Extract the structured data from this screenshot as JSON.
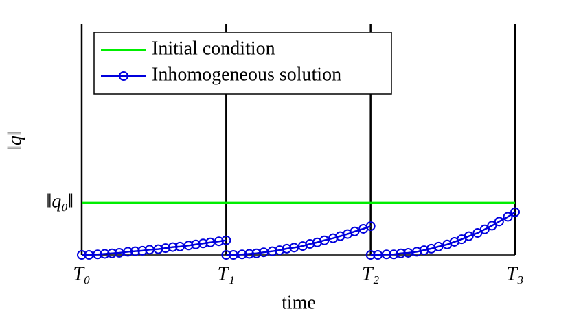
{
  "chart_data": {
    "type": "line",
    "xlabel": "time",
    "ylabel": "‖q‖",
    "xlim": [
      0,
      3
    ],
    "ylim": [
      0,
      4.43
    ],
    "xticks": [
      {
        "value": 0,
        "label": "T₀"
      },
      {
        "value": 1,
        "label": "T₁"
      },
      {
        "value": 2,
        "label": "T₂"
      },
      {
        "value": 3,
        "label": "T₃"
      }
    ],
    "yticks": [
      {
        "value": 1,
        "label": "‖q₀‖"
      }
    ],
    "grid": "x",
    "legend": "upper left",
    "series": [
      {
        "name": "Initial condition",
        "color": "#00ee00",
        "marker": "none",
        "x": [
          0,
          3
        ],
        "values": [
          1,
          1
        ]
      },
      {
        "name": "Inhomogeneous solution",
        "color": "#0000dd",
        "marker": "circle",
        "x": [
          0,
          0.05,
          0.11,
          0.16,
          0.21,
          0.26,
          0.32,
          0.37,
          0.42,
          0.47,
          0.53,
          0.58,
          0.63,
          0.68,
          0.74,
          0.79,
          0.84,
          0.89,
          0.95,
          1,
          null,
          1,
          1.05,
          1.11,
          1.16,
          1.21,
          1.26,
          1.32,
          1.37,
          1.42,
          1.47,
          1.53,
          1.58,
          1.63,
          1.68,
          1.74,
          1.79,
          1.84,
          1.89,
          1.95,
          2,
          null,
          2,
          2.05,
          2.11,
          2.16,
          2.21,
          2.26,
          2.32,
          2.37,
          2.42,
          2.47,
          2.53,
          2.58,
          2.63,
          2.68,
          2.74,
          2.79,
          2.84,
          2.89,
          2.95,
          3
        ],
        "values": [
          0,
          0.0,
          0.01,
          0.02,
          0.03,
          0.04,
          0.06,
          0.07,
          0.08,
          0.1,
          0.11,
          0.13,
          0.15,
          0.16,
          0.18,
          0.2,
          0.22,
          0.24,
          0.26,
          0.28,
          null,
          0,
          0.0,
          0.01,
          0.02,
          0.03,
          0.05,
          0.07,
          0.09,
          0.12,
          0.14,
          0.17,
          0.21,
          0.24,
          0.28,
          0.32,
          0.36,
          0.4,
          0.45,
          0.5,
          0.55,
          null,
          0,
          0.0,
          0.01,
          0.01,
          0.03,
          0.04,
          0.06,
          0.09,
          0.12,
          0.16,
          0.2,
          0.25,
          0.3,
          0.36,
          0.42,
          0.49,
          0.56,
          0.64,
          0.73,
          0.82
        ]
      }
    ]
  }
}
